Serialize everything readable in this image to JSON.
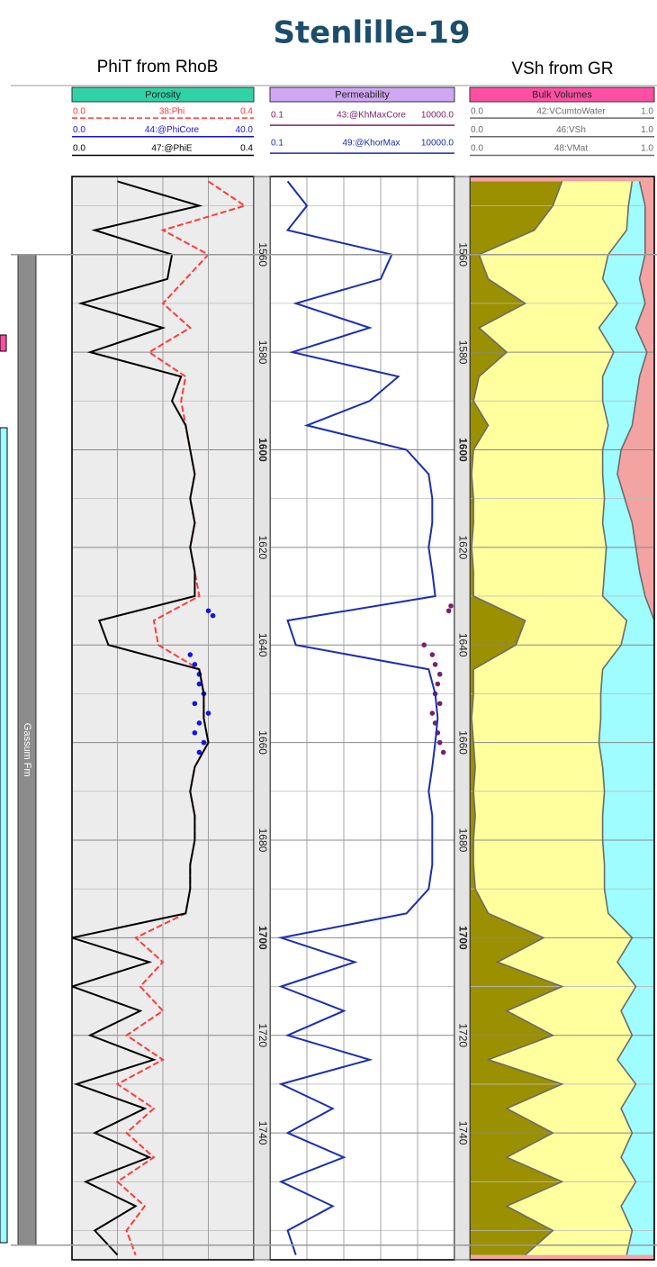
{
  "chart_data": {
    "type": "well-log",
    "title": "Stenlille-19",
    "subtitles": [
      "PhiT from RhoB",
      "VSh from GR"
    ],
    "formation": {
      "name": "Gassum Fm",
      "top": 1560,
      "base": 1763
    },
    "ylim": [
      1544,
      1766
    ],
    "yticks": [
      1560,
      1580,
      1600,
      1620,
      1640,
      1660,
      1680,
      1700,
      1720,
      1740
    ],
    "ygrid": [
      1550,
      1570,
      1590,
      1610,
      1630,
      1650,
      1670,
      1690,
      1710,
      1730,
      1750,
      1760
    ],
    "depths": [
      1545,
      1550,
      1555,
      1560,
      1565,
      1570,
      1575,
      1580,
      1585,
      1590,
      1595,
      1600,
      1605,
      1610,
      1615,
      1620,
      1625,
      1630,
      1635,
      1640,
      1645,
      1650,
      1655,
      1660,
      1665,
      1670,
      1675,
      1680,
      1685,
      1690,
      1695,
      1700,
      1705,
      1710,
      1715,
      1720,
      1725,
      1730,
      1735,
      1740,
      1745,
      1750,
      1755,
      1760,
      1765
    ],
    "tracks": [
      {
        "name": "Porosity",
        "color": "#2fd3a6",
        "log_scale": false,
        "xgrid": [
          0.1,
          0.2,
          0.3
        ],
        "curves": [
          {
            "name": "38:Phi",
            "color": "#ff3b3b",
            "dash": true,
            "xlim": [
              {
                "value": 0,
                "label": "0.0"
              },
              0.4
            ],
            "values": [
              0.3,
              0.38,
              0.2,
              0.3,
              0.25,
              0.2,
              0.26,
              0.17,
              0.25,
              0.24,
              0.25,
              0.26,
              0.27,
              0.26,
              0.27,
              0.26,
              0.27,
              0.28,
              0.18,
              0.19,
              0.28,
              0.29,
              0.29,
              0.3,
              0.27,
              0.26,
              0.27,
              0.27,
              0.26,
              0.26,
              0.25,
              0.14,
              0.2,
              0.15,
              0.2,
              0.12,
              0.2,
              0.1,
              0.18,
              0.12,
              0.18,
              0.1,
              0.16,
              0.12,
              0.14
            ]
          },
          {
            "name": "44:@PhiCore",
            "color": "#1414e6",
            "dash": false,
            "xlim": [
              {
                "value": 0,
                "label": "0.0"
              },
              {
                "value": 40,
                "label": "40.0"
              }
            ],
            "depths": [
              1633,
              1634,
              1642,
              1644,
              1646,
              1648,
              1650,
              1652,
              1654,
              1656,
              1658,
              1660,
              1662
            ],
            "values": [
              30,
              31,
              26,
              27,
              28,
              28,
              29,
              27,
              30,
              28,
              27,
              29,
              28
            ]
          },
          {
            "name": "47:@PhiE",
            "color": "#000000",
            "dash": false,
            "xlim": [
              {
                "value": 0,
                "label": "0.0"
              },
              0.4
            ],
            "values": [
              0.1,
              0.28,
              0.05,
              0.22,
              0.21,
              0.02,
              0.2,
              0.04,
              0.24,
              0.22,
              0.25,
              0.26,
              0.27,
              0.26,
              0.27,
              0.26,
              0.27,
              0.27,
              0.06,
              0.08,
              0.28,
              0.29,
              0.29,
              0.3,
              0.27,
              0.26,
              0.27,
              0.27,
              0.26,
              0.26,
              0.25,
              0,
              0.17,
              0,
              0.15,
              0.04,
              0.18,
              0.01,
              0.16,
              0.05,
              0.17,
              0.03,
              0.14,
              0.05,
              0.1
            ]
          }
        ]
      },
      {
        "name": "Permeability",
        "color": "#cfa6f2",
        "log_scale": true,
        "xgrid": [
          1,
          10,
          100,
          1000
        ],
        "curves": [
          {
            "name": "43:@KhMaxCore",
            "color": "#7a1f6e",
            "dash": false,
            "xlim": [
              0.1,
              {
                "value": 10000,
                "label": "10000.0"
              }
            ],
            "depths": [
              1632,
              1633,
              1640,
              1642,
              1644,
              1646,
              1648,
              1650,
              1652,
              1654,
              1656,
              1658,
              1660,
              1662
            ],
            "values": [
              8000,
              7000,
              1500,
              2500,
              3000,
              4000,
              3500,
              3000,
              4000,
              2500,
              3000,
              3500,
              4000,
              5000
            ]
          },
          {
            "name": "49:@KhorMax",
            "color": "#1a2fb0",
            "dash": false,
            "xlim": [
              0.1,
              {
                "value": 10000,
                "label": "10000.0"
              }
            ],
            "values": [
              0.3,
              1,
              0.3,
              200,
              100,
              0.5,
              50,
              0.4,
              300,
              50,
              1,
              500,
              2000,
              2500,
              2500,
              2000,
              2500,
              3000,
              0.3,
              0.5,
              2000,
              3000,
              3500,
              3000,
              2500,
              2000,
              2500,
              2500,
              2500,
              2000,
              500,
              0.2,
              20,
              0.2,
              10,
              0.3,
              50,
              0.2,
              5,
              0.3,
              10,
              0.2,
              5,
              0.3,
              0.5
            ]
          }
        ]
      },
      {
        "name": "Bulk Volumes",
        "color": "#ff4fa3",
        "log_scale": false,
        "fill_right": "#f4a3a3",
        "xgrid": [],
        "curves": [
          {
            "name": "42:VCumtoWater",
            "color": "#6b6b6b",
            "dash": false,
            "fill": "#9ffcff",
            "xlim": [
              {
                "value": 0,
                "label": "0.0"
              },
              {
                "value": 1,
                "label": "1.0"
              }
            ],
            "values": [
              0.92,
              0.95,
              0.95,
              0.95,
              0.92,
              0.95,
              0.9,
              0.96,
              0.92,
              0.9,
              0.88,
              0.82,
              0.8,
              0.84,
              0.88,
              0.9,
              0.92,
              0.95,
              1,
              1,
              1,
              1,
              1,
              1,
              1,
              1,
              1,
              1,
              1,
              1,
              1,
              1,
              1,
              1,
              1,
              1,
              1,
              1,
              1,
              1,
              1,
              1,
              1,
              1,
              1
            ]
          },
          {
            "name": "46:VSh",
            "color": "#6b6b6b",
            "dash": false,
            "fill": "#9a9000",
            "xlim": [
              {
                "value": 0,
                "label": "0.0"
              },
              {
                "value": 1,
                "label": "1.0"
              }
            ],
            "values": [
              0.5,
              0.45,
              0.35,
              0.05,
              0.1,
              0.3,
              0.05,
              0.2,
              0.05,
              0.02,
              0.1,
              0.02,
              0.01,
              0.02,
              0.02,
              0.01,
              0.02,
              0.02,
              0.3,
              0.25,
              0.02,
              0.02,
              0.01,
              0.02,
              0.03,
              0.02,
              0.03,
              0.02,
              0.02,
              0.03,
              0.1,
              0.4,
              0.15,
              0.5,
              0.2,
              0.45,
              0.1,
              0.5,
              0.2,
              0.45,
              0.2,
              0.5,
              0.2,
              0.45,
              0.3
            ]
          },
          {
            "name": "48:VMat",
            "color": "#6b6b6b",
            "dash": false,
            "fill": "#ffff9e",
            "xlim": [
              {
                "value": 0,
                "label": "0.0"
              },
              {
                "value": 1,
                "label": "1.0"
              }
            ],
            "values": [
              0.88,
              0.86,
              0.85,
              0.75,
              0.72,
              0.8,
              0.7,
              0.78,
              0.72,
              0.72,
              0.75,
              0.72,
              0.72,
              0.73,
              0.72,
              0.74,
              0.73,
              0.72,
              0.85,
              0.82,
              0.72,
              0.71,
              0.71,
              0.7,
              0.72,
              0.73,
              0.72,
              0.72,
              0.73,
              0.73,
              0.75,
              0.88,
              0.8,
              0.9,
              0.82,
              0.88,
              0.8,
              0.9,
              0.82,
              0.88,
              0.82,
              0.9,
              0.82,
              0.88,
              0.85
            ]
          }
        ]
      }
    ]
  }
}
